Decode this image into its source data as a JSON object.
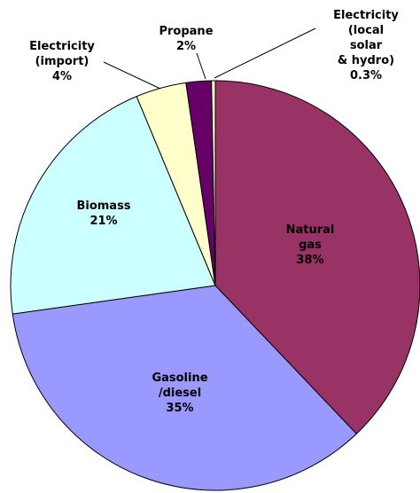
{
  "chart_data": {
    "type": "pie",
    "categories": [
      "Natural\ngas",
      "Gasoline\n/diesel",
      "Biomass",
      "Electricity\n(import)",
      "Propane",
      "Electricity\n(local solar\n& hydro)"
    ],
    "values": [
      38,
      35,
      21,
      4,
      2,
      0.3
    ],
    "value_labels": [
      "38%",
      "35%",
      "21%",
      "4%",
      "2%",
      "0.3%"
    ],
    "colors": [
      "#993366",
      "#9999ff",
      "#ccffff",
      "#ffffcc",
      "#660066",
      "#ffffcc"
    ]
  }
}
